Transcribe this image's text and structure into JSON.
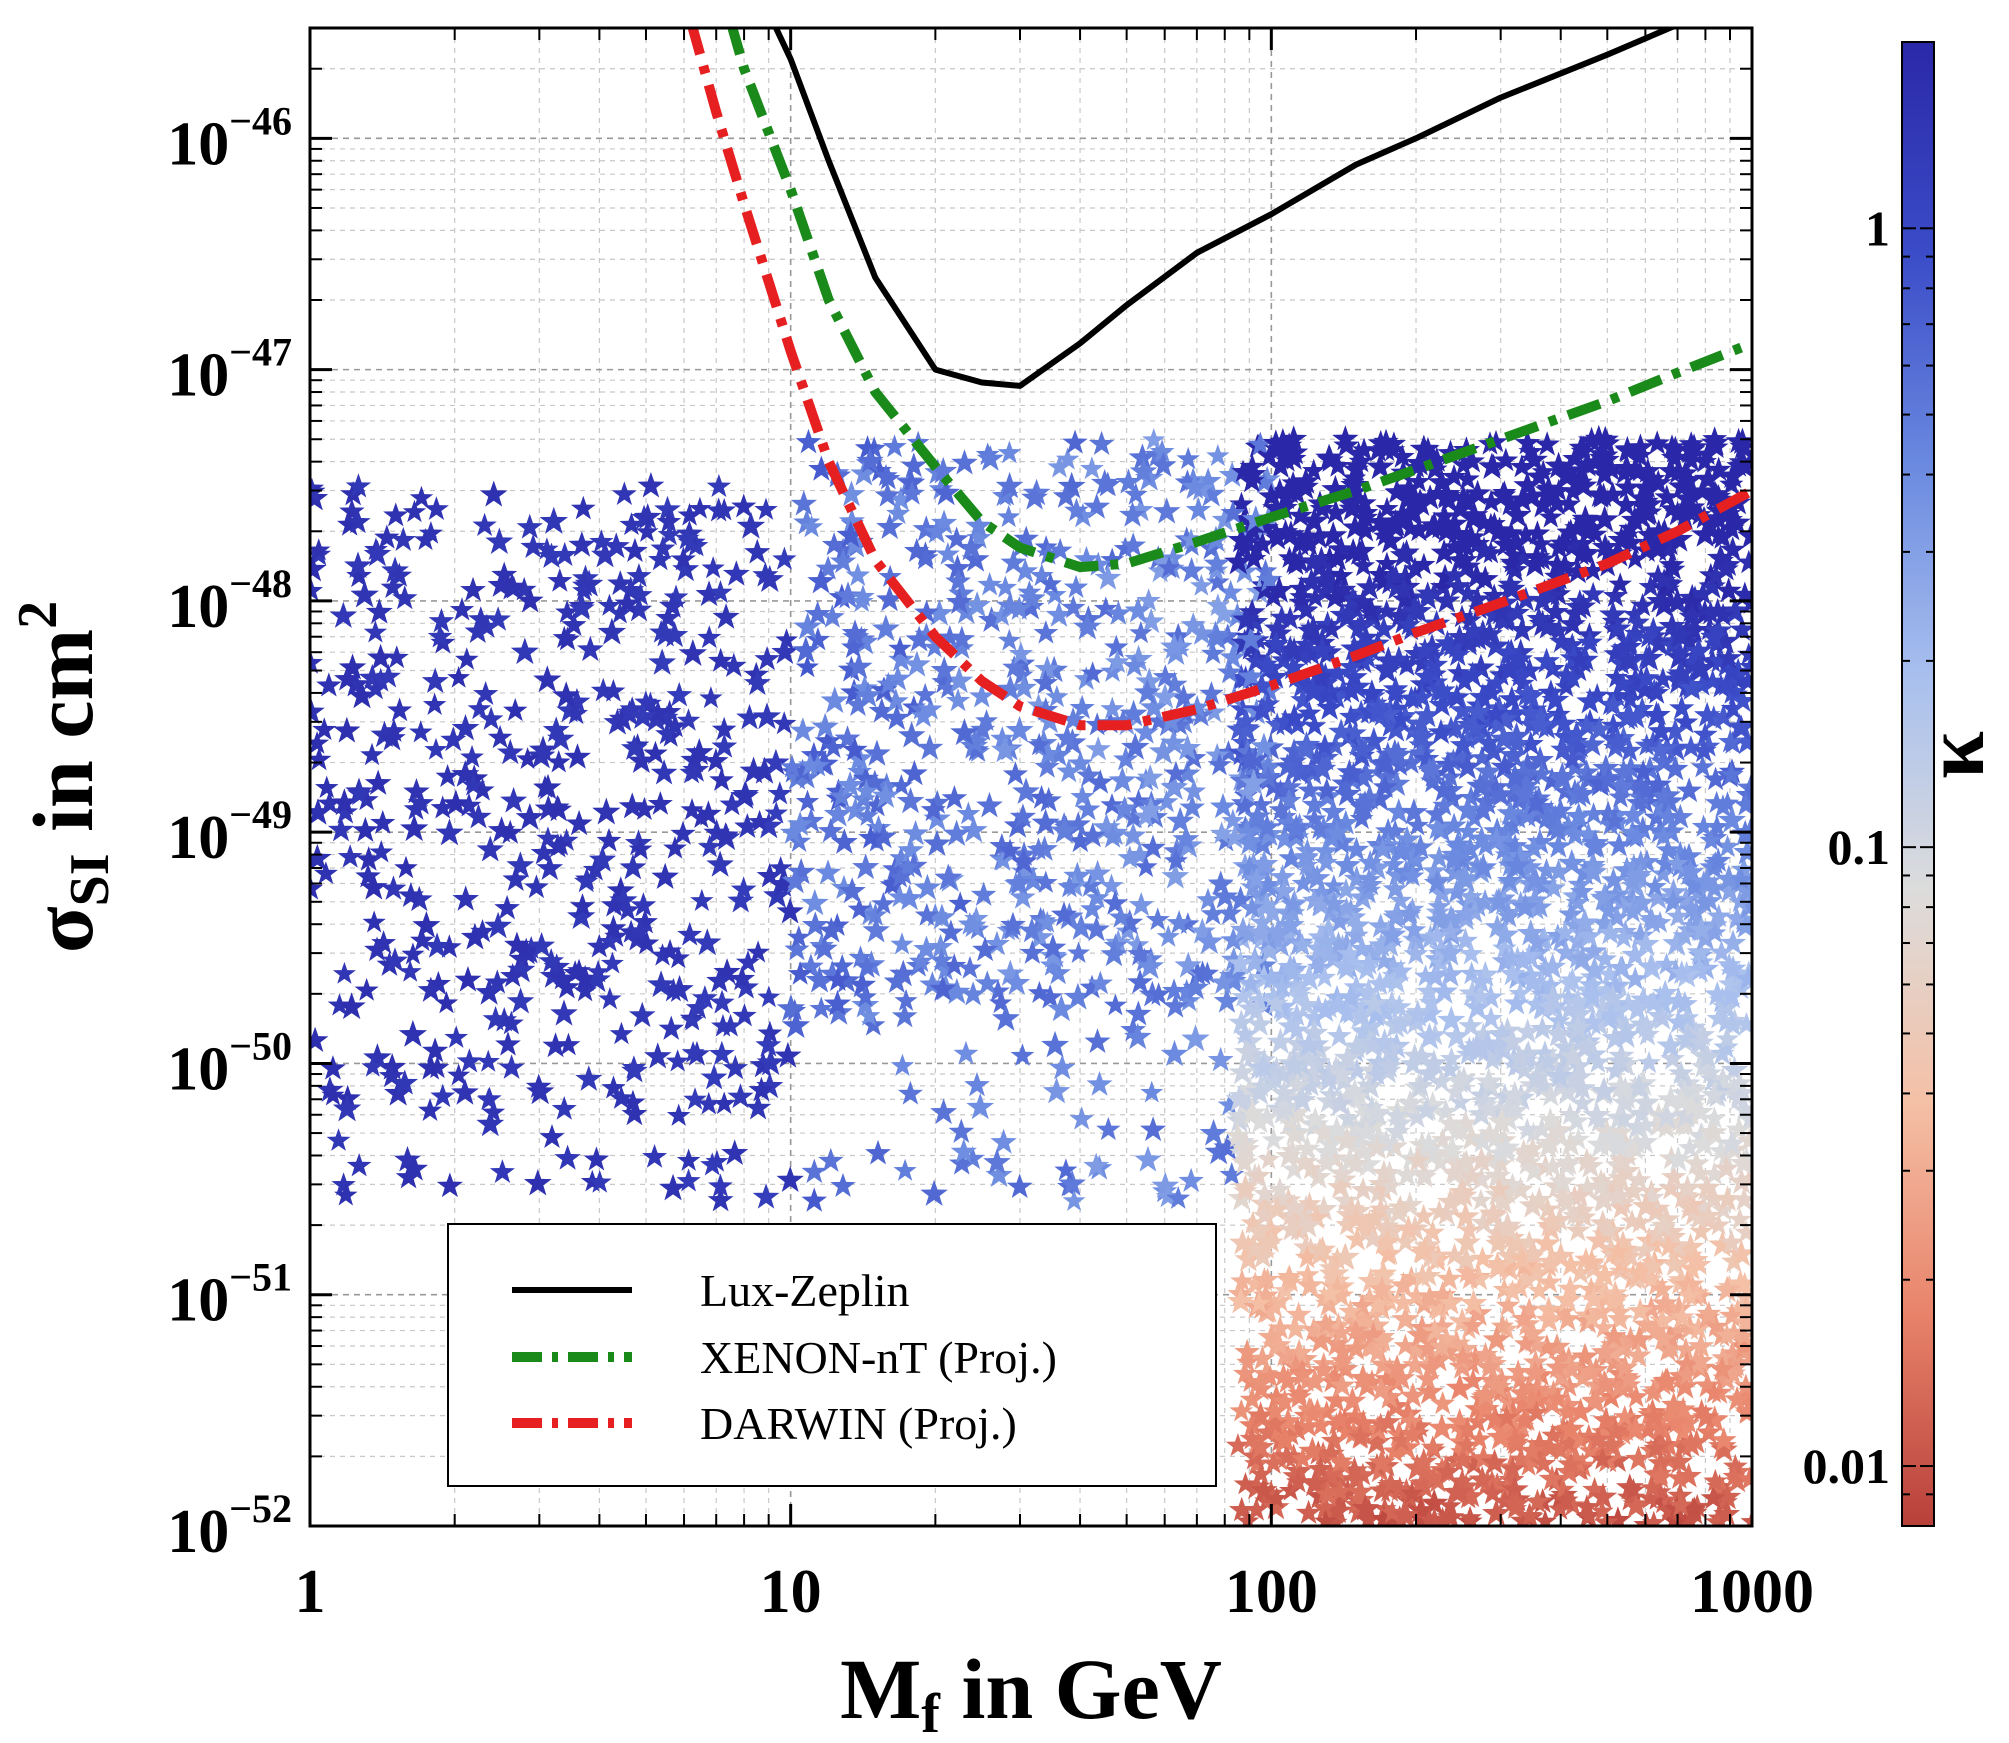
{
  "chart_data": {
    "type": "scatter",
    "x_scale": "log",
    "y_scale": "log",
    "xlim": [
      1,
      1000
    ],
    "ylim": [
      1e-52,
      3e-46
    ],
    "xlabel": {
      "main": "M",
      "sub": "f",
      "rest": " in GeV"
    },
    "ylabel": {
      "main": "σ",
      "sub": "SI",
      "rest": " in cm",
      "sup": "2"
    },
    "x_ticks": [
      {
        "value": 1,
        "label": "1"
      },
      {
        "value": 10,
        "label": "10"
      },
      {
        "value": 100,
        "label": "100"
      },
      {
        "value": 1000,
        "label": "1000"
      }
    ],
    "y_ticks": [
      {
        "value": 1e-46,
        "base": "10",
        "exp": "−46"
      },
      {
        "value": 1e-47,
        "base": "10",
        "exp": "−47"
      },
      {
        "value": 1e-48,
        "base": "10",
        "exp": "−48"
      },
      {
        "value": 1e-49,
        "base": "10",
        "exp": "−49"
      },
      {
        "value": 1e-50,
        "base": "10",
        "exp": "−50"
      },
      {
        "value": 1e-51,
        "base": "10",
        "exp": "−51"
      },
      {
        "value": 1e-52,
        "base": "10",
        "exp": "−52"
      }
    ],
    "grid": true,
    "colorbar": {
      "label": "κ",
      "scale": "log",
      "range": [
        0.008,
        2.0
      ],
      "ticks": [
        {
          "value": 1,
          "label": "1"
        },
        {
          "value": 0.1,
          "label": "0.1"
        },
        {
          "value": 0.01,
          "label": "0.01"
        }
      ],
      "colors": [
        "#b8403a",
        "#e8836a",
        "#f4c0a6",
        "#dcdcdc",
        "#a9c0ee",
        "#6b8ae0",
        "#3b4cc8",
        "#2a28a8"
      ]
    },
    "legend": {
      "placement": "bottom-center",
      "entries": [
        {
          "label": "Lux-Zeplin",
          "color": "#000000",
          "style": "solid"
        },
        {
          "label": "XENON-nT (Proj.)",
          "color": "#1a8a1a",
          "style": "dashdot"
        },
        {
          "label": "DARWIN (Proj.)",
          "color": "#e62020",
          "style": "dashdot"
        }
      ]
    },
    "series": [
      {
        "name": "Lux-Zeplin",
        "color": "#000000",
        "style": "solid",
        "x": [
          9,
          10,
          12,
          15,
          20,
          25,
          30,
          40,
          50,
          70,
          100,
          150,
          200,
          300,
          500,
          700,
          1000
        ],
        "y": [
          3.5e-46,
          2.2e-46,
          8e-47,
          2.5e-47,
          1e-47,
          8.8e-48,
          8.5e-48,
          1.3e-47,
          1.9e-47,
          3.2e-47,
          4.7e-47,
          7.7e-47,
          1e-46,
          1.5e-46,
          2.3e-46,
          3.1e-46,
          4.4e-46
        ]
      },
      {
        "name": "XENON-nT (Proj.)",
        "color": "#1a8a1a",
        "style": "dashdot",
        "x": [
          7.5,
          8,
          10,
          12,
          15,
          20,
          25,
          30,
          40,
          50,
          70,
          100,
          150,
          200,
          300,
          500,
          700,
          1000
        ],
        "y": [
          3.2e-46,
          2e-46,
          6e-47,
          2e-47,
          8e-48,
          3.8e-48,
          2.2e-48,
          1.7e-48,
          1.4e-48,
          1.45e-48,
          1.8e-48,
          2.3e-48,
          3e-48,
          3.7e-48,
          5e-48,
          7.3e-48,
          9.7e-48,
          1.3e-47
        ]
      },
      {
        "name": "DARWIN (Proj.)",
        "color": "#e62020",
        "style": "dashdot",
        "x": [
          6.2,
          7,
          8,
          10,
          12,
          15,
          20,
          25,
          30,
          40,
          50,
          70,
          100,
          150,
          200,
          300,
          500,
          700,
          1000
        ],
        "y": [
          3.2e-46,
          1.3e-46,
          5.2e-47,
          1.2e-47,
          4e-48,
          1.5e-48,
          7e-49,
          4.5e-49,
          3.5e-49,
          2.9e-49,
          2.9e-49,
          3.4e-49,
          4.3e-49,
          5.8e-49,
          7.3e-49,
          9.8e-49,
          1.45e-48,
          2e-48,
          3e-48
        ]
      }
    ],
    "scatter_description": {
      "marker": "star",
      "points_estimated": 4500
    }
  }
}
